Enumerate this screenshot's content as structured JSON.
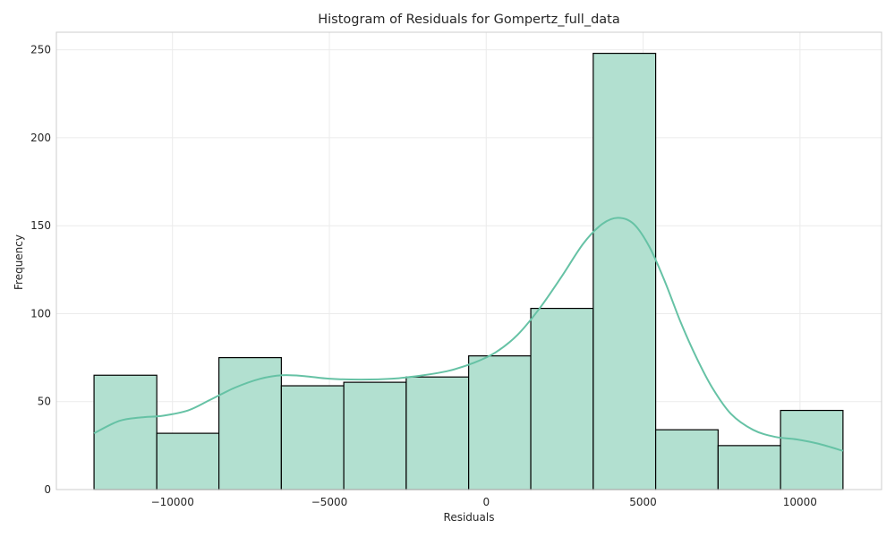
{
  "chart_data": {
    "type": "bar",
    "title": "Histogram of Residuals for Gompertz_full_data",
    "xlabel": "Residuals",
    "ylabel": "Frequency",
    "xlim": [
      -13700,
      12600
    ],
    "ylim": [
      0,
      260
    ],
    "x_ticks": [
      -10000,
      -5000,
      0,
      5000,
      10000
    ],
    "x_tick_labels": [
      "−10000",
      "−5000",
      "0",
      "5000",
      "10000"
    ],
    "y_ticks": [
      0,
      50,
      100,
      150,
      200,
      250
    ],
    "y_tick_labels": [
      "0",
      "50",
      "100",
      "150",
      "200",
      "250"
    ],
    "grid": true,
    "bins": [
      {
        "start": -12500,
        "end": -10500,
        "count": 65
      },
      {
        "start": -10500,
        "end": -8520,
        "count": 32
      },
      {
        "start": -8520,
        "end": -6530,
        "count": 75
      },
      {
        "start": -6530,
        "end": -4540,
        "count": 59
      },
      {
        "start": -4540,
        "end": -2550,
        "count": 61
      },
      {
        "start": -2550,
        "end": -560,
        "count": 64
      },
      {
        "start": -560,
        "end": 1420,
        "count": 76
      },
      {
        "start": 1420,
        "end": 3410,
        "count": 103
      },
      {
        "start": 3410,
        "end": 5400,
        "count": 248
      },
      {
        "start": 5400,
        "end": 7390,
        "count": 34
      },
      {
        "start": 7390,
        "end": 9380,
        "count": 25
      },
      {
        "start": 9380,
        "end": 11370,
        "count": 45
      }
    ],
    "kde": {
      "x": [
        -12500,
        -11700,
        -11000,
        -10300,
        -9500,
        -8800,
        -8000,
        -7200,
        -6500,
        -5800,
        -5000,
        -4000,
        -3000,
        -2000,
        -1200,
        -400,
        300,
        1000,
        1700,
        2400,
        3100,
        3700,
        4200,
        4700,
        5200,
        5700,
        6200,
        6700,
        7200,
        7800,
        8500,
        9200,
        9900,
        10600,
        11370
      ],
      "y": [
        32,
        39,
        41,
        42,
        45,
        51,
        58,
        63,
        65,
        64.5,
        63,
        62.5,
        63,
        65,
        67.5,
        72,
        78,
        88,
        103,
        121,
        140,
        151,
        154.5,
        151,
        138,
        118,
        95,
        75,
        58,
        43,
        34,
        30,
        28.5,
        26,
        22
      ]
    },
    "colors": {
      "bar_fill": "#b2e0d0",
      "bar_edge": "#000000",
      "kde_line": "#66c2a5",
      "grid": "#ebebeb",
      "frame": "#cccccc"
    }
  }
}
